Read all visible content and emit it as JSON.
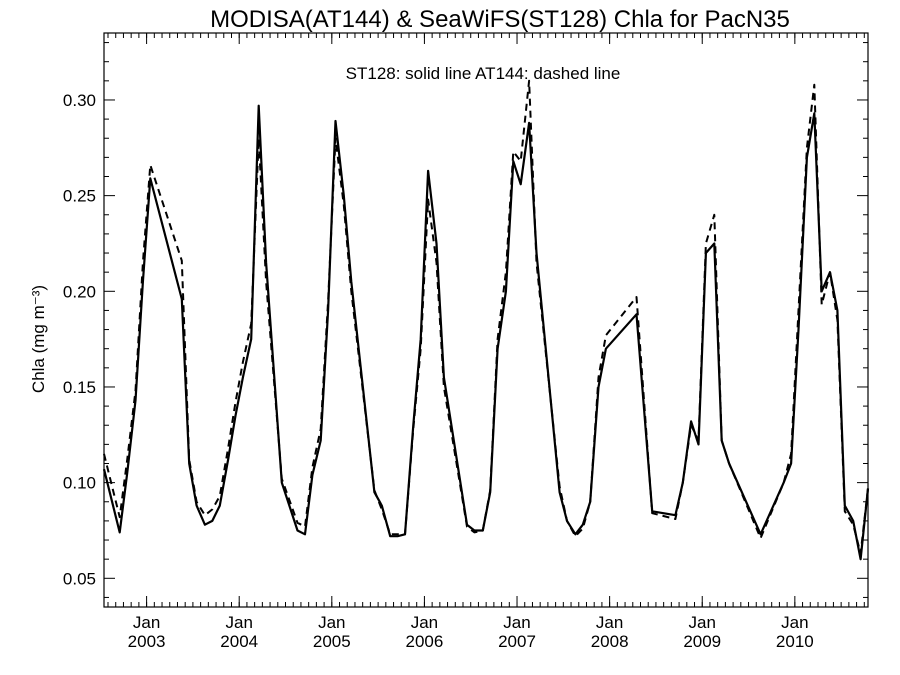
{
  "chart_data": {
    "type": "line",
    "title": "MODISA(AT144) & SeaWiFS(ST128)  Chla for PacN35",
    "annotation": "ST128: solid line   AT144: dashed line",
    "ylabel": "Chla (mg m⁻³)",
    "xlabel": "",
    "xlim": [
      2002.54,
      2010.79
    ],
    "ylim": [
      0.035,
      0.335
    ],
    "yticks": [
      0.05,
      0.1,
      0.15,
      0.2,
      0.25,
      0.3
    ],
    "ytick_labels": [
      "0.05",
      "0.10",
      "0.15",
      "0.20",
      "0.25",
      "0.30"
    ],
    "xticks": [
      2003,
      2004,
      2005,
      2006,
      2007,
      2008,
      2009,
      2010
    ],
    "xtick_month_label": "Jan",
    "xtick_year_labels": [
      "2003",
      "2004",
      "2005",
      "2006",
      "2007",
      "2008",
      "2009",
      "2010"
    ],
    "grid": false,
    "series": [
      {
        "name": "ST128",
        "style": "solid",
        "color": "#000000",
        "x": [
          2002.54,
          2002.71,
          2002.79,
          2002.88,
          2002.96,
          2003.04,
          2003.38,
          2003.46,
          2003.54,
          2003.63,
          2003.71,
          2003.79,
          2003.88,
          2003.96,
          2004.04,
          2004.13,
          2004.21,
          2004.29,
          2004.46,
          2004.63,
          2004.71,
          2004.79,
          2004.88,
          2004.96,
          2005.04,
          2005.13,
          2005.21,
          2005.46,
          2005.54,
          2005.63,
          2005.71,
          2005.79,
          2005.88,
          2005.96,
          2006.04,
          2006.13,
          2006.21,
          2006.46,
          2006.54,
          2006.63,
          2006.71,
          2006.79,
          2006.88,
          2006.96,
          2007.04,
          2007.13,
          2007.21,
          2007.46,
          2007.54,
          2007.63,
          2007.71,
          2007.79,
          2007.88,
          2007.96,
          2008.29,
          2008.46,
          2008.71,
          2008.79,
          2008.88,
          2008.96,
          2009.04,
          2009.13,
          2009.21,
          2009.29,
          2009.63,
          2009.88,
          2009.96,
          2010.04,
          2010.13,
          2010.21,
          2010.29,
          2010.38,
          2010.46,
          2010.54,
          2010.63,
          2010.71,
          2010.79
        ],
        "values": [
          0.107,
          0.074,
          0.105,
          0.143,
          0.205,
          0.259,
          0.196,
          0.11,
          0.088,
          0.078,
          0.08,
          0.088,
          0.112,
          0.135,
          0.155,
          0.175,
          0.297,
          0.215,
          0.1,
          0.075,
          0.073,
          0.104,
          0.122,
          0.19,
          0.289,
          0.25,
          0.205,
          0.095,
          0.088,
          0.072,
          0.072,
          0.073,
          0.13,
          0.175,
          0.263,
          0.225,
          0.155,
          0.078,
          0.075,
          0.075,
          0.095,
          0.17,
          0.2,
          0.268,
          0.256,
          0.288,
          0.22,
          0.095,
          0.08,
          0.073,
          0.078,
          0.09,
          0.15,
          0.17,
          0.188,
          0.085,
          0.083,
          0.1,
          0.132,
          0.12,
          0.22,
          0.225,
          0.122,
          0.11,
          0.073,
          0.1,
          0.11,
          0.18,
          0.27,
          0.293,
          0.2,
          0.21,
          0.19,
          0.088,
          0.08,
          0.06,
          0.097
        ]
      },
      {
        "name": "AT144",
        "style": "dashed",
        "color": "#000000",
        "x": [
          2002.54,
          2002.71,
          2002.79,
          2002.88,
          2002.96,
          2003.04,
          2003.38,
          2003.46,
          2003.54,
          2003.63,
          2003.71,
          2003.79,
          2003.88,
          2003.96,
          2004.04,
          2004.13,
          2004.21,
          2004.29,
          2004.46,
          2004.63,
          2004.71,
          2004.79,
          2004.88,
          2004.96,
          2005.04,
          2005.13,
          2005.21,
          2005.46,
          2005.54,
          2005.63,
          2005.71,
          2005.79,
          2005.88,
          2005.96,
          2006.04,
          2006.13,
          2006.21,
          2006.46,
          2006.54,
          2006.63,
          2006.71,
          2006.79,
          2006.88,
          2006.96,
          2007.04,
          2007.13,
          2007.21,
          2007.46,
          2007.54,
          2007.63,
          2007.71,
          2007.79,
          2007.88,
          2007.96,
          2008.29,
          2008.46,
          2008.71,
          2008.79,
          2008.88,
          2008.96,
          2009.04,
          2009.13,
          2009.21,
          2009.29,
          2009.63,
          2009.88,
          2009.96,
          2010.04,
          2010.13,
          2010.21,
          2010.29,
          2010.38,
          2010.46,
          2010.54,
          2010.63,
          2010.71,
          2010.79
        ],
        "values": [
          0.115,
          0.082,
          0.112,
          0.148,
          0.215,
          0.266,
          0.216,
          0.112,
          0.09,
          0.083,
          0.086,
          0.093,
          0.118,
          0.142,
          0.163,
          0.183,
          0.28,
          0.205,
          0.102,
          0.079,
          0.077,
          0.108,
          0.128,
          0.195,
          0.28,
          0.245,
          0.2,
          0.096,
          0.086,
          0.073,
          0.073,
          0.073,
          0.128,
          0.17,
          0.248,
          0.215,
          0.15,
          0.077,
          0.074,
          0.075,
          0.096,
          0.175,
          0.21,
          0.273,
          0.268,
          0.31,
          0.215,
          0.098,
          0.08,
          0.072,
          0.076,
          0.09,
          0.155,
          0.177,
          0.197,
          0.084,
          0.081,
          0.1,
          0.13,
          0.122,
          0.225,
          0.24,
          0.122,
          0.11,
          0.071,
          0.1,
          0.115,
          0.19,
          0.275,
          0.308,
          0.193,
          0.21,
          0.185,
          0.085,
          0.078,
          0.063,
          0.097
        ]
      }
    ]
  }
}
